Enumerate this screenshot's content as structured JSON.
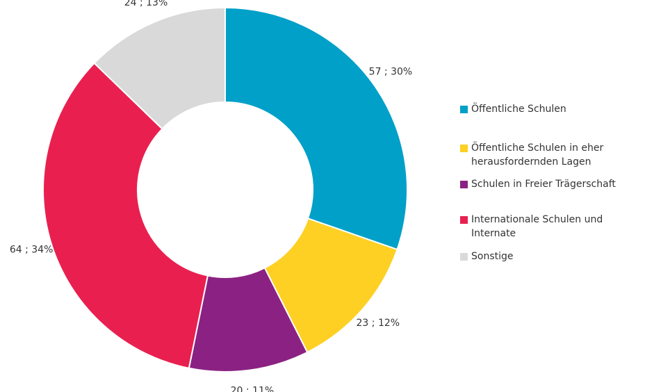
{
  "chart_data": {
    "type": "donut",
    "categories": [
      "Öffentliche Schulen",
      "Öffentliche Schulen in eher herausfordernden Lagen",
      "Schulen in Freier Trägerschaft",
      "Internationale Schulen und Internate",
      "Sonstige"
    ],
    "values": [
      57,
      23,
      20,
      64,
      24
    ],
    "value_labels": [
      "57 ; 30%",
      "23 ; 12%",
      "20 ; 11%",
      "64 ; 34%",
      "24 ; 13%"
    ],
    "colors": [
      "#00a0c8",
      "#fdd023",
      "#8b2283",
      "#e9204f",
      "#d9d9d9"
    ],
    "legend": "right"
  }
}
